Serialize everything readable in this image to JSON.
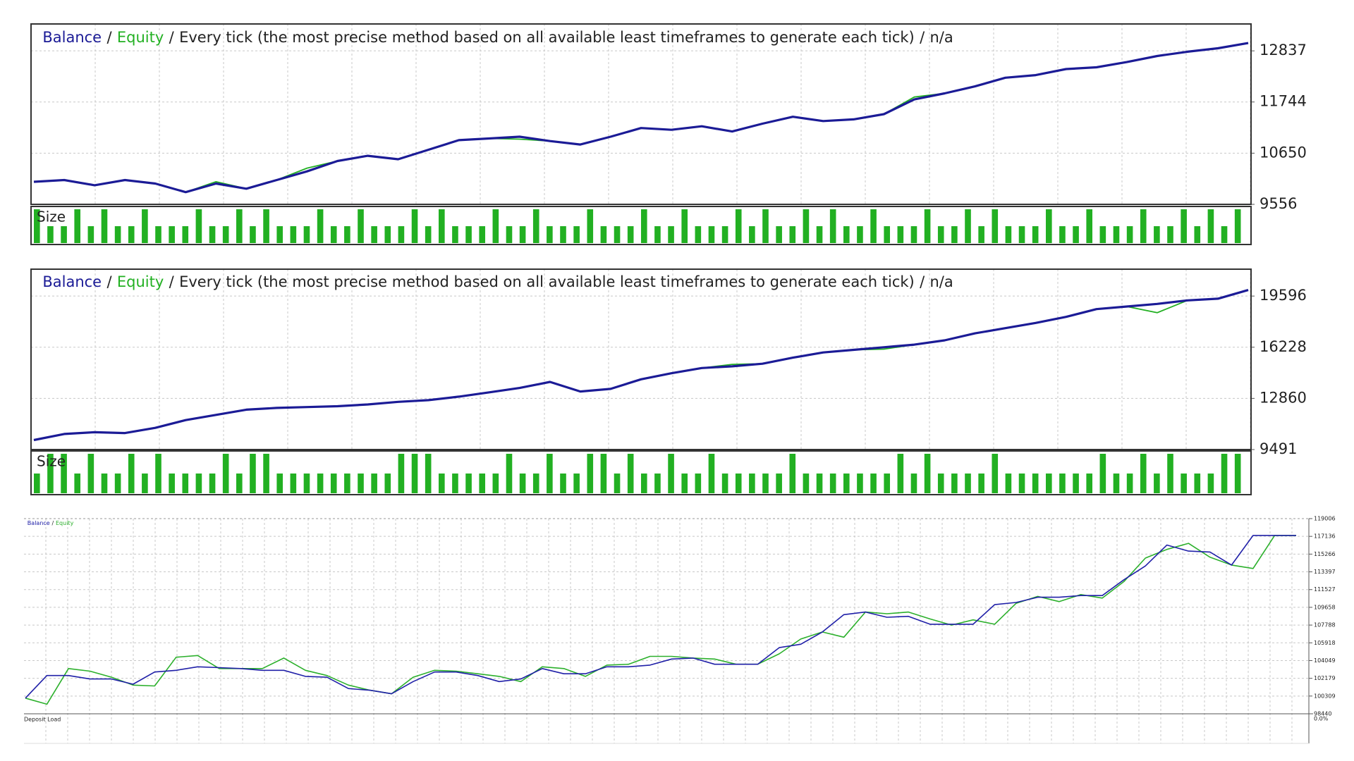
{
  "chart_data": [
    {
      "type": "line",
      "legend_separator": "/",
      "subtitle": "Every tick (the most precise method based on all available least timeframes to generate each tick)",
      "note": "n/a",
      "series": [
        {
          "name": "Balance",
          "color": "#1b1b96",
          "values": [
            10038,
            10075,
            9964,
            10075,
            10001,
            9816,
            10001,
            9890,
            10075,
            10261,
            10483,
            10594,
            10520,
            10724,
            10928,
            10965,
            11002,
            10909,
            10835,
            11002,
            11188,
            11150,
            11225,
            11113,
            11280,
            11429,
            11336,
            11373,
            11484,
            11799,
            11929,
            12077,
            12263,
            12318,
            12448,
            12485,
            12597,
            12726,
            12819,
            12893,
            13004
          ]
        },
        {
          "name": "Equity",
          "color": "#22b022",
          "values": [
            10038,
            10075,
            9964,
            10075,
            10001,
            9816,
            10040,
            9890,
            10075,
            10330,
            10483,
            10594,
            10520,
            10724,
            10928,
            10965,
            10950,
            10909,
            10835,
            11002,
            11188,
            11150,
            11225,
            11113,
            11280,
            11429,
            11336,
            11373,
            11484,
            11850,
            11929,
            12077,
            12263,
            12318,
            12448,
            12485,
            12597,
            12726,
            12819,
            12893,
            13004
          ]
        }
      ],
      "ylim": [
        9556,
        13412
      ],
      "yticks": [
        9556,
        10650,
        11744,
        12837
      ],
      "grid": true,
      "size": {
        "label": "Size",
        "color": "#22b022",
        "values": [
          2,
          1,
          1,
          2,
          1,
          2,
          1,
          1,
          2,
          1,
          1,
          1,
          2,
          1,
          1,
          2,
          1,
          2,
          1,
          1,
          1,
          2,
          1,
          1,
          2,
          1,
          1,
          1,
          2,
          1,
          2,
          1,
          1,
          1,
          2,
          1,
          1,
          2,
          1,
          1,
          1,
          2,
          1,
          1,
          1,
          2,
          1,
          1,
          2,
          1,
          1,
          1,
          2,
          1,
          2,
          1,
          1,
          2,
          1,
          2,
          1,
          1,
          2,
          1,
          1,
          1,
          2,
          1,
          1,
          2,
          1,
          2,
          1,
          1,
          1,
          2,
          1,
          1,
          2,
          1,
          1,
          1,
          2,
          1,
          1,
          2,
          1,
          2,
          1,
          2
        ]
      }
    },
    {
      "type": "line",
      "legend_separator": "/",
      "subtitle": "Every tick (the most precise method based on all available least timeframes to generate each tick)",
      "note": "n/a",
      "series": [
        {
          "name": "Balance",
          "color": "#1b1b96",
          "values": [
            10119,
            10518,
            10633,
            10576,
            10918,
            11432,
            11774,
            12117,
            12231,
            12288,
            12345,
            12459,
            12630,
            12745,
            12973,
            13258,
            13544,
            13943,
            13315,
            13487,
            14114,
            14514,
            14856,
            14971,
            15142,
            15541,
            15884,
            16055,
            16226,
            16398,
            16683,
            17140,
            17482,
            17825,
            18224,
            18738,
            18909,
            19080,
            19309,
            19423,
            19994
          ]
        },
        {
          "name": "Equity",
          "color": "#22b022",
          "values": [
            10119,
            10518,
            10633,
            10576,
            10918,
            11432,
            11774,
            12117,
            12231,
            12288,
            12345,
            12459,
            12630,
            12745,
            12973,
            13258,
            13544,
            13943,
            13315,
            13487,
            14114,
            14514,
            14856,
            15100,
            15142,
            15541,
            15884,
            16055,
            16100,
            16398,
            16683,
            17140,
            17482,
            17825,
            18224,
            18738,
            18909,
            18500,
            19309,
            19423,
            19994
          ]
        }
      ],
      "ylim": [
        9491,
        21366
      ],
      "yticks": [
        9491,
        12860,
        16228,
        19596
      ],
      "grid": true,
      "size": {
        "label": "Size",
        "color": "#22b022",
        "values": [
          1,
          2,
          2,
          1,
          2,
          1,
          1,
          2,
          1,
          2,
          1,
          1,
          1,
          1,
          2,
          1,
          2,
          2,
          1,
          1,
          1,
          1,
          1,
          1,
          1,
          1,
          1,
          2,
          2,
          2,
          1,
          1,
          1,
          1,
          1,
          2,
          1,
          1,
          2,
          1,
          1,
          2,
          2,
          1,
          2,
          1,
          1,
          2,
          1,
          1,
          2,
          1,
          1,
          1,
          1,
          1,
          2,
          1,
          1,
          1,
          1,
          1,
          1,
          1,
          2,
          1,
          2,
          1,
          1,
          1,
          1,
          2,
          1,
          1,
          1,
          1,
          1,
          1,
          1,
          2,
          1,
          1,
          2,
          1,
          2,
          1,
          1,
          1,
          2,
          2
        ]
      }
    },
    {
      "type": "line",
      "legend_separator": "/",
      "series": [
        {
          "name": "Balance",
          "color": "#2020a8",
          "values": [
            100090,
            102470,
            102470,
            102110,
            102110,
            101560,
            102840,
            103020,
            103390,
            103300,
            103210,
            103020,
            103020,
            102380,
            102290,
            101100,
            100920,
            100550,
            101830,
            102840,
            102840,
            102470,
            101830,
            102110,
            103210,
            102660,
            102660,
            103390,
            103390,
            103570,
            104210,
            104310,
            103660,
            103660,
            103660,
            105410,
            105770,
            107060,
            108890,
            109160,
            108610,
            108710,
            107880,
            107880,
            107880,
            109940,
            110170,
            110720,
            110720,
            110900,
            110900,
            112560,
            114020,
            116220,
            115580,
            115490,
            114110,
            117230,
            117230,
            117230
          ]
        },
        {
          "name": "Equity",
          "color": "#2cb02c",
          "values": [
            100090,
            99450,
            103210,
            102930,
            102290,
            101460,
            101370,
            104400,
            104580,
            103210,
            103210,
            103210,
            104310,
            103020,
            102470,
            101460,
            100920,
            100550,
            102290,
            103020,
            102930,
            102660,
            102380,
            101830,
            103390,
            103210,
            102380,
            103570,
            103660,
            104490,
            104490,
            104310,
            104210,
            103660,
            103660,
            104760,
            106320,
            107060,
            106510,
            109160,
            108980,
            109160,
            108430,
            107790,
            108340,
            107880,
            110080,
            110810,
            110260,
            111000,
            110630,
            112370,
            114850,
            115760,
            116400,
            114940,
            114110,
            113750,
            117230,
            117230
          ]
        }
      ],
      "ylim": [
        98440,
        119006
      ],
      "yticks": [
        98440,
        100309,
        102179,
        104049,
        105918,
        107788,
        109658,
        111527,
        113397,
        115266,
        117136,
        119006
      ],
      "grid": true,
      "load": {
        "label": "Deposit Load",
        "ticks": [
          {
            "value": 0,
            "label": "0.0%"
          }
        ]
      }
    }
  ]
}
